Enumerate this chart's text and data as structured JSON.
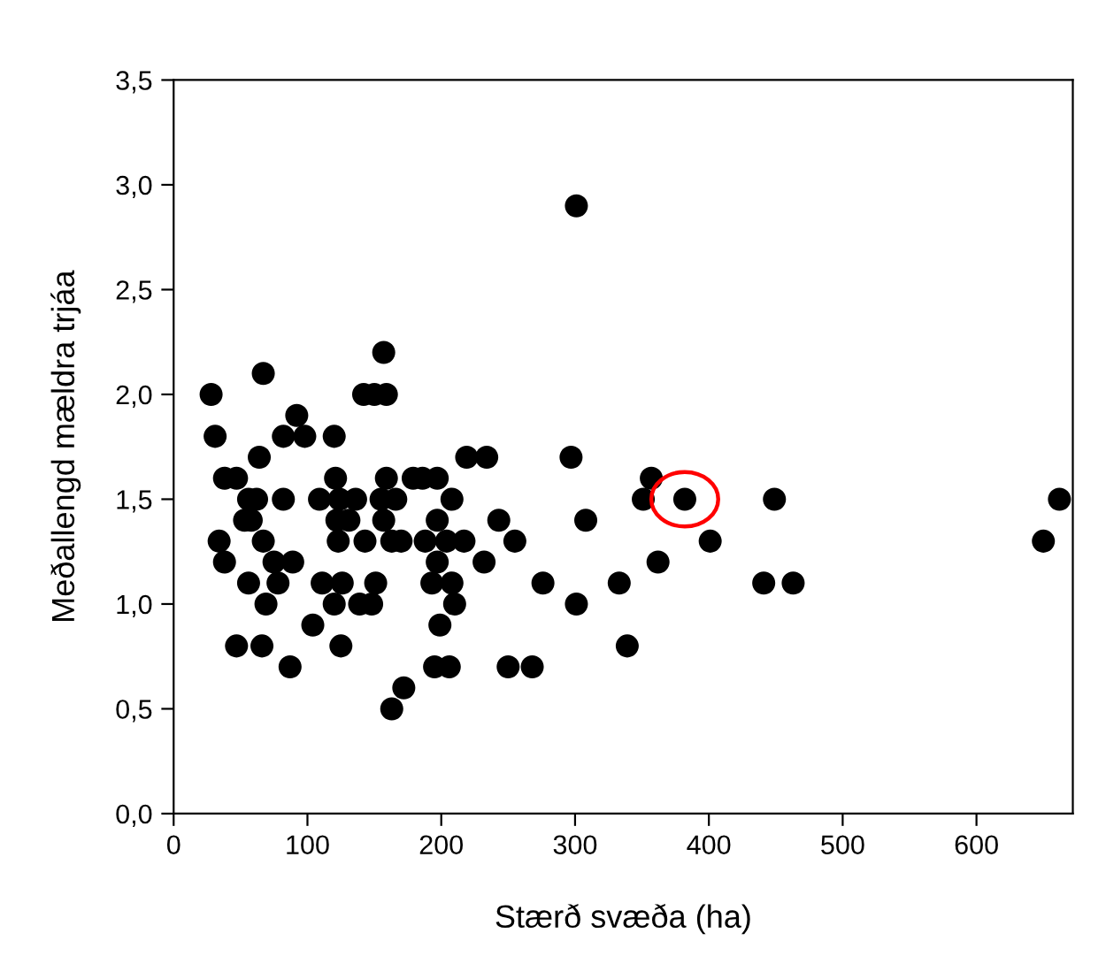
{
  "chart_data": {
    "type": "scatter",
    "xlabel": "Stærð svæða (ha)",
    "ylabel": "Meðallengd mældra trjáa",
    "marker": "circle",
    "grid": false,
    "series": [
      {
        "color": "#000000",
        "x": [
          301,
          157,
          67,
          28,
          142,
          150,
          159,
          92,
          31,
          82,
          98,
          120,
          64,
          219,
          234,
          297,
          38,
          47,
          121,
          159,
          179,
          186,
          197,
          357,
          56,
          62,
          82,
          109,
          124,
          136,
          155,
          166,
          208,
          351,
          382,
          449,
          662,
          53,
          58,
          122,
          131,
          157,
          197,
          243,
          308,
          34,
          67,
          123,
          143,
          163,
          170,
          188,
          204,
          217,
          255,
          401,
          650,
          38,
          75,
          89,
          197,
          232,
          362,
          56,
          78,
          111,
          126,
          151,
          193,
          208,
          276,
          333,
          441,
          463,
          69,
          120,
          139,
          148,
          210,
          301,
          104,
          199,
          47,
          66,
          125,
          339,
          87,
          195,
          206,
          250,
          268,
          172,
          163
        ],
        "values": [
          2.9,
          2.2,
          2.1,
          2.0,
          2.0,
          2.0,
          2.0,
          1.9,
          1.8,
          1.8,
          1.8,
          1.8,
          1.7,
          1.7,
          1.7,
          1.7,
          1.6,
          1.6,
          1.6,
          1.6,
          1.6,
          1.6,
          1.6,
          1.6,
          1.5,
          1.5,
          1.5,
          1.5,
          1.5,
          1.5,
          1.5,
          1.5,
          1.5,
          1.5,
          1.5,
          1.5,
          1.5,
          1.4,
          1.4,
          1.4,
          1.4,
          1.4,
          1.4,
          1.4,
          1.4,
          1.3,
          1.3,
          1.3,
          1.3,
          1.3,
          1.3,
          1.3,
          1.3,
          1.3,
          1.3,
          1.3,
          1.3,
          1.2,
          1.2,
          1.2,
          1.2,
          1.2,
          1.2,
          1.1,
          1.1,
          1.1,
          1.1,
          1.1,
          1.1,
          1.1,
          1.1,
          1.1,
          1.1,
          1.1,
          1.0,
          1.0,
          1.0,
          1.0,
          1.0,
          1.0,
          0.9,
          0.9,
          0.8,
          0.8,
          0.8,
          0.8,
          0.7,
          0.7,
          0.7,
          0.7,
          0.7,
          0.6,
          0.5
        ]
      }
    ],
    "xlim": [
      0,
      672
    ],
    "xticks": [
      0,
      100,
      200,
      300,
      400,
      500,
      600
    ],
    "ylim": [
      0,
      3.5
    ],
    "yticks": [
      {
        "value": 0,
        "label": "0,0"
      },
      {
        "value": 0.5,
        "label": "0,5"
      },
      {
        "value": 1.0,
        "label": "1,0"
      },
      {
        "value": 1.5,
        "label": "1,5"
      },
      {
        "value": 2.0,
        "label": "2,0"
      },
      {
        "value": 2.5,
        "label": "2,5"
      },
      {
        "value": 3.0,
        "label": "3,0"
      },
      {
        "value": 3.5,
        "label": "3,5"
      }
    ]
  }
}
